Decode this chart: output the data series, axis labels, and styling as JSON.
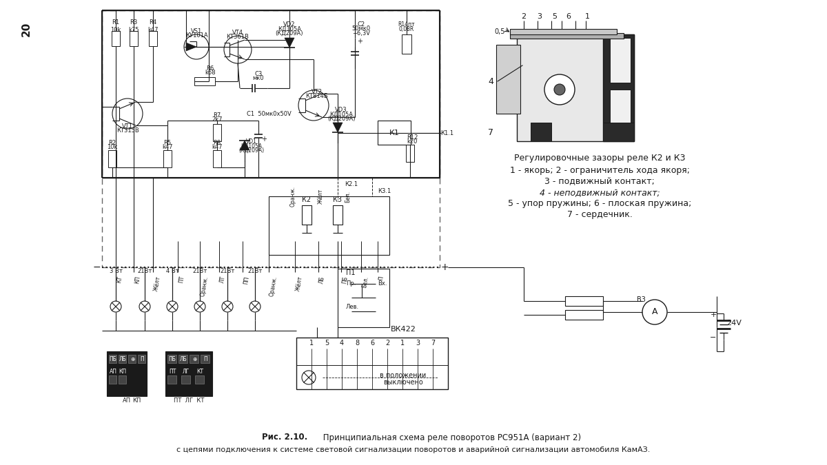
{
  "title_line1_bold": "Рис. 2.10.",
  "title_line1_normal": " Принципиальная схема реле поворотов РС951А (вариант 2)",
  "title_line2": "с цепями подключения к системе световой сигнализации поворотов и аварийной сигнализации автомобиля КамАЗ.",
  "page_number": "20",
  "bg_color": "#ffffff",
  "sc": "#1a1a1a",
  "right_title": "Регулировочные зазоры реле К2 и К3",
  "right_items": [
    "1 - якорь; 2 - ограничитель хода якоря;",
    "3 - подвижный контакт;",
    "4 - неподвижный контакт;",
    "5 - упор пружины; 6 - плоская пружина;",
    "7 - сердечник."
  ],
  "wire_labels": [
    "КТ",
    "КП",
    "Жёлт",
    "ПТ",
    "Оранж.",
    "ЛТ",
    "ПП",
    "Оранж.",
    "Жёлт",
    "ЛБ",
    "ПБ",
    "Бел.",
    "П"
  ],
  "lamp_labels": [
    "3 Вт",
    "21Вт",
    "4 Вт",
    "21Вт",
    "21Вт",
    "21Вт"
  ],
  "connector_pins": [
    "1",
    "5",
    "4",
    "8",
    "6",
    "2",
    "1",
    "3",
    "7"
  ]
}
